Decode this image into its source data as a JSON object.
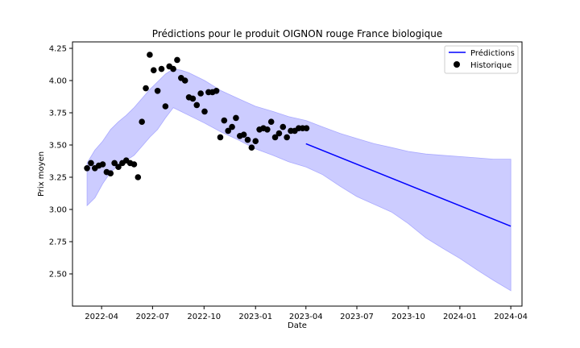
{
  "chart_data": {
    "type": "line",
    "title": "Prédictions pour le produit OIGNON rouge France biologique",
    "xlabel": "Date",
    "ylabel": "Prix moyen",
    "xlim": [
      "2022-02-08",
      "2024-04-21"
    ],
    "ylim": [
      2.25,
      4.3
    ],
    "x_ticks": [
      "2022-04",
      "2022-07",
      "2022-10",
      "2023-01",
      "2023-04",
      "2023-07",
      "2023-10",
      "2024-01",
      "2024-04"
    ],
    "y_ticks": [
      "2.50",
      "2.75",
      "3.00",
      "3.25",
      "3.50",
      "3.75",
      "4.00",
      "4.25"
    ],
    "legend": {
      "position": "top-right",
      "entries": [
        "Prédictions",
        "Historique"
      ]
    },
    "colors": {
      "prediction_line": "#0000ff",
      "band": "#ccccff",
      "band_edge": "#aaaaff",
      "historique": "#000000"
    },
    "series": [
      {
        "name": "Prédictions",
        "type": "line",
        "x": [
          "2023-04-01",
          "2024-04-01"
        ],
        "y": [
          3.51,
          2.87
        ]
      },
      {
        "name": "Historique",
        "type": "scatter",
        "x": [
          "2022-03-06",
          "2022-03-13",
          "2022-03-20",
          "2022-03-27",
          "2022-04-03",
          "2022-04-10",
          "2022-04-17",
          "2022-04-24",
          "2022-05-01",
          "2022-05-08",
          "2022-05-15",
          "2022-05-22",
          "2022-05-29",
          "2022-06-05",
          "2022-06-12",
          "2022-06-19",
          "2022-06-26",
          "2022-07-03",
          "2022-07-10",
          "2022-07-17",
          "2022-07-24",
          "2022-07-31",
          "2022-08-07",
          "2022-08-14",
          "2022-08-21",
          "2022-08-28",
          "2022-09-04",
          "2022-09-11",
          "2022-09-18",
          "2022-09-25",
          "2022-10-02",
          "2022-10-09",
          "2022-10-16",
          "2022-10-23",
          "2022-10-30",
          "2022-11-06",
          "2022-11-13",
          "2022-11-20",
          "2022-11-27",
          "2022-12-04",
          "2022-12-11",
          "2022-12-18",
          "2022-12-25",
          "2023-01-01",
          "2023-01-08",
          "2023-01-15",
          "2023-01-22",
          "2023-01-29",
          "2023-02-05",
          "2023-02-12",
          "2023-02-19",
          "2023-02-26",
          "2023-03-05",
          "2023-03-12",
          "2023-03-19",
          "2023-03-26",
          "2023-04-02"
        ],
        "y": [
          3.32,
          3.36,
          3.32,
          3.34,
          3.35,
          3.29,
          3.28,
          3.36,
          3.33,
          3.36,
          3.38,
          3.36,
          3.35,
          3.25,
          3.68,
          3.94,
          4.2,
          4.08,
          3.92,
          4.09,
          3.8,
          4.11,
          4.09,
          4.16,
          4.02,
          4.0,
          3.87,
          3.86,
          3.81,
          3.9,
          3.76,
          3.91,
          3.91,
          3.92,
          3.56,
          3.69,
          3.61,
          3.64,
          3.71,
          3.57,
          3.58,
          3.54,
          3.48,
          3.53,
          3.62,
          3.63,
          3.62,
          3.68,
          3.56,
          3.59,
          3.64,
          3.56,
          3.61,
          3.61,
          3.63,
          3.63,
          3.63
        ]
      },
      {
        "name": "",
        "type": "band",
        "x": [
          "2022-03-06",
          "2022-03-20",
          "2022-04-03",
          "2022-04-17",
          "2022-05-01",
          "2022-05-15",
          "2022-05-29",
          "2022-06-12",
          "2022-06-26",
          "2022-07-10",
          "2022-07-24",
          "2022-08-07",
          "2022-08-21",
          "2022-09-04",
          "2022-10-02",
          "2022-11-01",
          "2022-12-01",
          "2023-01-01",
          "2023-02-01",
          "2023-03-01",
          "2023-04-01",
          "2023-05-01",
          "2023-06-01",
          "2023-07-01",
          "2023-08-01",
          "2023-09-01",
          "2023-10-01",
          "2023-11-01",
          "2023-12-01",
          "2024-01-01",
          "2024-02-01",
          "2024-03-01",
          "2024-04-01"
        ],
        "upper": [
          3.36,
          3.46,
          3.53,
          3.62,
          3.68,
          3.73,
          3.79,
          3.86,
          3.93,
          3.99,
          4.05,
          4.09,
          4.08,
          4.06,
          4.0,
          3.92,
          3.86,
          3.8,
          3.76,
          3.72,
          3.69,
          3.64,
          3.59,
          3.55,
          3.51,
          3.48,
          3.45,
          3.43,
          3.42,
          3.41,
          3.4,
          3.39,
          3.39
        ],
        "lower": [
          3.03,
          3.09,
          3.2,
          3.29,
          3.34,
          3.38,
          3.42,
          3.49,
          3.56,
          3.62,
          3.71,
          3.79,
          3.76,
          3.73,
          3.67,
          3.6,
          3.54,
          3.47,
          3.42,
          3.37,
          3.33,
          3.27,
          3.18,
          3.1,
          3.04,
          2.98,
          2.89,
          2.78,
          2.7,
          2.62,
          2.53,
          2.45,
          2.37
        ]
      }
    ]
  }
}
